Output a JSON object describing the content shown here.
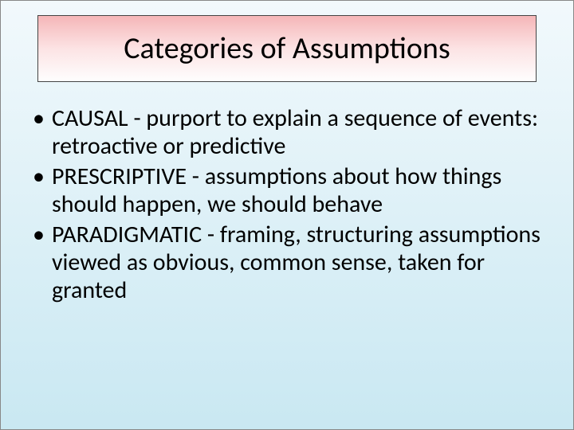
{
  "slide": {
    "title": "Categories of Assumptions",
    "bullets": [
      "CAUSAL - purport to explain a sequence of events: retroactive or predictive",
      "PRESCRIPTIVE - assumptions about how things should happen, we should behave",
      "PARADIGMATIC - framing, structuring assumptions viewed as obvious, common sense, taken for granted"
    ]
  },
  "styles": {
    "title_fontsize": 38,
    "body_fontsize": 30,
    "title_bg_gradient": [
      "#f5b6b8",
      "#fce3e4",
      "#fefefe"
    ],
    "slide_bg_gradient": [
      "#f2f9fc",
      "#c9e8f2"
    ],
    "text_color": "#000000",
    "title_border": "#444444"
  }
}
